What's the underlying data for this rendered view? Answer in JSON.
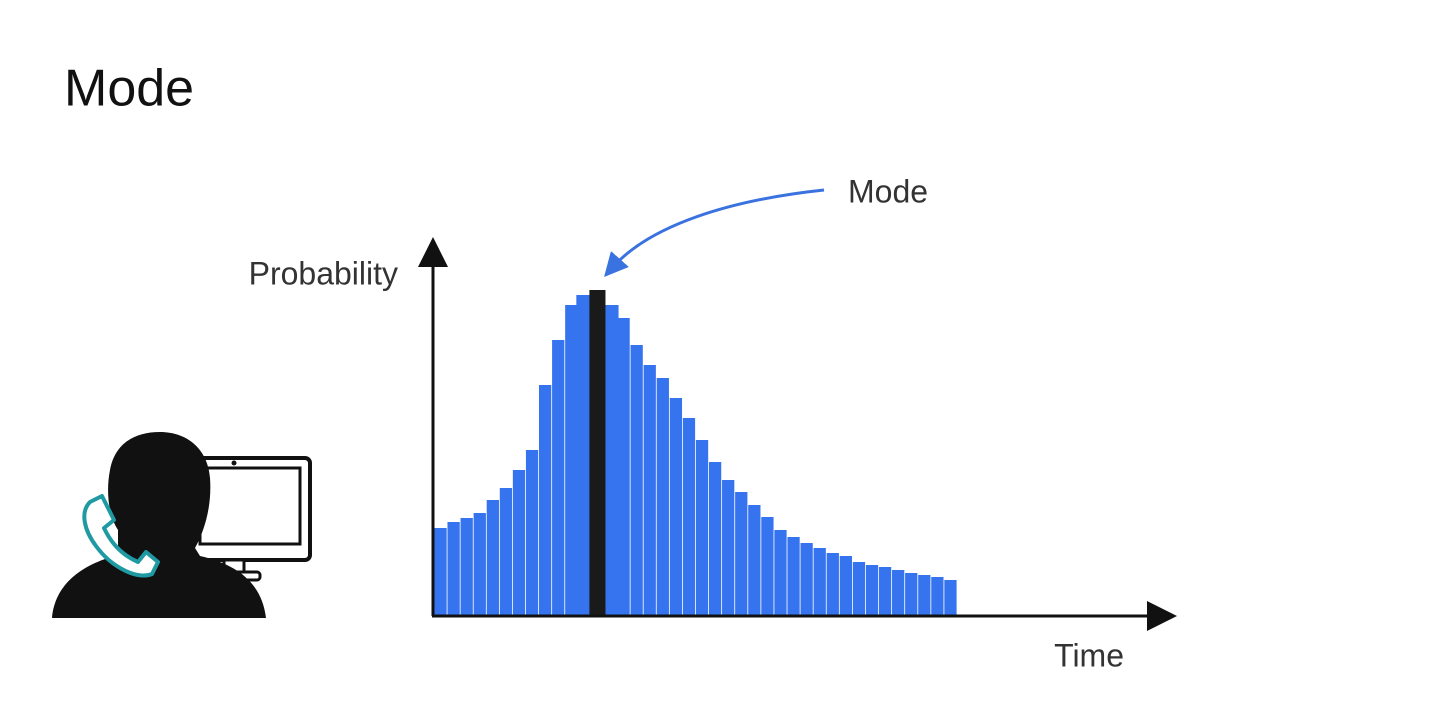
{
  "chart_data": {
    "type": "bar",
    "title": "Mode",
    "ylabel": "Probability",
    "xlabel": "Time",
    "annotation": "Mode",
    "categories": [
      null,
      null,
      null,
      null,
      null,
      null,
      null,
      null,
      null,
      null,
      null,
      null,
      null,
      null,
      null,
      null,
      null,
      null,
      null,
      null,
      null,
      null,
      null,
      null,
      null,
      null,
      null,
      null,
      null,
      null,
      null,
      null,
      null,
      null,
      null,
      null,
      null,
      null,
      null,
      null
    ],
    "values": [
      87,
      93,
      97,
      102,
      115,
      127,
      145,
      165,
      230,
      275,
      310,
      320,
      325,
      310,
      297,
      270,
      250,
      237,
      217,
      197,
      175,
      153,
      135,
      123,
      110,
      98,
      85,
      78,
      72,
      67,
      62,
      59,
      53,
      50,
      48,
      45,
      42,
      40,
      38,
      35
    ],
    "colors": [
      "#3574ee",
      "#3574ee",
      "#3574ee",
      "#3574ee",
      "#3574ee",
      "#3574ee",
      "#3574ee",
      "#3574ee",
      "#3574ee",
      "#3574ee",
      "#3574ee",
      "#3574ee",
      "#1a1a1a",
      "#3574ee",
      "#3574ee",
      "#3574ee",
      "#3574ee",
      "#3574ee",
      "#3574ee",
      "#3574ee",
      "#3574ee",
      "#3574ee",
      "#3574ee",
      "#3574ee",
      "#3574ee",
      "#3574ee",
      "#3574ee",
      "#3574ee",
      "#3574ee",
      "#3574ee",
      "#3574ee",
      "#3574ee",
      "#3574ee",
      "#3574ee",
      "#3574ee",
      "#3574ee",
      "#3574ee",
      "#3574ee",
      "#3574ee",
      "#3574ee"
    ],
    "ylim": [
      0,
      370
    ]
  }
}
